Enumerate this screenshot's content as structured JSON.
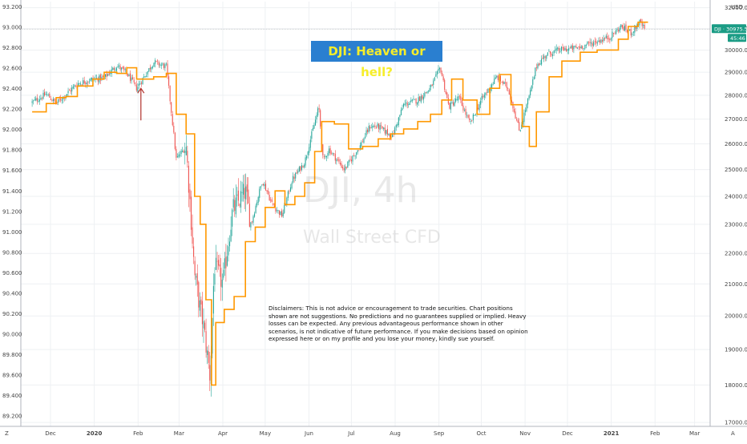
{
  "annotations": {
    "title": "DJI: Heaven or hell?",
    "disclaimer": "Disclaimers: This is not advice or encouragement to trade securities. Chart positions shown are not suggestions. No predictions and no guarantees supplied or implied. Heavy losses can be expected. Any previous advantageous performance shown in other scenarios, is not indicative of future performance.  If you make decisions based on opinion expressed here or on my profile and you lose your money, kindly sue yourself.",
    "watermark_symbol": "DJI, 4h",
    "watermark_description": "Wall Street CFD",
    "currency": "USD",
    "current_price_label": "DJI · 30975.5",
    "countdown_label": "45:46",
    "corner_left": "Z",
    "corner_right": "A"
  },
  "colors": {
    "up_candle": "#26a69a",
    "down_candle": "#ef5350",
    "overlay_line": "#ff9800",
    "price_label_bg": "#1b9c85",
    "arrow": "#b0312b",
    "title_bg": "#2a7fd0",
    "title_text": "#f6ee2a"
  },
  "chart_data": {
    "type": "candlestick",
    "symbol": "DJI",
    "timeframe": "4h",
    "x_ticks": [
      "Dec",
      "2020",
      "Feb",
      "Mar",
      "Apr",
      "May",
      "Jun",
      "Jul",
      "Aug",
      "Sep",
      "Oct",
      "Nov",
      "Dec",
      "2021",
      "Feb",
      "Mar"
    ],
    "x_tick_bold": [
      "2020",
      "2021"
    ],
    "left_axis": {
      "ticks": [
        "93.200",
        "93.000",
        "92.800",
        "92.600",
        "92.400",
        "92.200",
        "92.000",
        "91.800",
        "91.600",
        "91.400",
        "91.200",
        "91.000",
        "90.800",
        "90.600",
        "90.400",
        "90.200",
        "90.000",
        "89.800",
        "89.600",
        "89.400",
        "89.200"
      ],
      "range": [
        89.1,
        93.25
      ]
    },
    "right_axis": {
      "ticks": [
        "32000.0",
        "31000.0",
        "30000.0",
        "29000.0",
        "28000.0",
        "27000.0",
        "26000.0",
        "25000.0",
        "24000.0",
        "23000.0",
        "22000.0",
        "21000.0",
        "20000.0",
        "19000.0",
        "18000.0",
        "17000.0"
      ],
      "range": [
        16900,
        32300
      ],
      "scale": "log"
    },
    "price_path": {
      "dates": [
        "2019-11-18",
        "2019-11-28",
        "2019-12-05",
        "2019-12-12",
        "2019-12-20",
        "2019-12-31",
        "2020-01-08",
        "2020-01-17",
        "2020-01-24",
        "2020-01-31",
        "2020-02-12",
        "2020-02-21",
        "2020-02-28",
        "2020-03-06",
        "2020-03-12",
        "2020-03-16",
        "2020-03-18",
        "2020-03-23",
        "2020-03-26",
        "2020-04-01",
        "2020-04-08",
        "2020-04-17",
        "2020-04-21",
        "2020-04-29",
        "2020-05-06",
        "2020-05-13",
        "2020-05-20",
        "2020-05-29",
        "2020-06-08",
        "2020-06-11",
        "2020-06-15",
        "2020-06-26",
        "2020-07-07",
        "2020-07-14",
        "2020-07-20",
        "2020-07-30",
        "2020-08-07",
        "2020-08-17",
        "2020-08-26",
        "2020-09-02",
        "2020-09-08",
        "2020-09-15",
        "2020-09-23",
        "2020-10-01",
        "2020-10-12",
        "2020-10-20",
        "2020-10-28",
        "2020-11-05",
        "2020-11-09",
        "2020-11-16",
        "2020-11-25",
        "2020-12-08",
        "2020-12-17",
        "2020-12-31",
        "2021-01-08",
        "2021-01-15",
        "2021-01-21",
        "2021-01-25"
      ],
      "values": [
        27700,
        28050,
        27650,
        28050,
        28500,
        28700,
        28750,
        29300,
        28950,
        28300,
        29450,
        29250,
        25400,
        25900,
        21300,
        20200,
        19800,
        18200,
        21600,
        21000,
        23500,
        24200,
        23000,
        24600,
        23700,
        23300,
        24600,
        25300,
        27500,
        25300,
        25800,
        25000,
        25900,
        26700,
        26700,
        26300,
        27600,
        27800,
        28300,
        29200,
        27500,
        27900,
        26800,
        27800,
        28800,
        28300,
        26500,
        28200,
        29300,
        29800,
        30000,
        30100,
        30300,
        30600,
        31100,
        30800,
        31300,
        30950
      ]
    },
    "overlay_line": {
      "name": "",
      "dates": [
        "2019-11-18",
        "2019-11-28",
        "2019-12-05",
        "2019-12-12",
        "2019-12-20",
        "2019-12-31",
        "2020-01-08",
        "2020-01-17",
        "2020-01-24",
        "2020-01-31",
        "2020-02-12",
        "2020-02-21",
        "2020-02-28",
        "2020-03-06",
        "2020-03-12",
        "2020-03-16",
        "2020-03-20",
        "2020-03-24",
        "2020-03-27",
        "2020-04-02",
        "2020-04-09",
        "2020-04-17",
        "2020-04-24",
        "2020-05-01",
        "2020-05-08",
        "2020-05-15",
        "2020-05-22",
        "2020-05-29",
        "2020-06-05",
        "2020-06-10",
        "2020-06-19",
        "2020-06-29",
        "2020-07-09",
        "2020-07-20",
        "2020-07-29",
        "2020-08-07",
        "2020-08-17",
        "2020-08-26",
        "2020-09-03",
        "2020-09-10",
        "2020-09-18",
        "2020-09-28",
        "2020-10-07",
        "2020-10-14",
        "2020-10-22",
        "2020-10-30",
        "2020-11-04",
        "2020-11-09",
        "2020-11-18",
        "2020-11-27",
        "2020-12-10",
        "2020-12-22",
        "2021-01-06",
        "2021-01-13",
        "2021-01-20",
        "2021-01-27"
      ],
      "values": [
        27300,
        27650,
        27900,
        27950,
        28400,
        28700,
        29000,
        28950,
        29200,
        28700,
        28800,
        28950,
        27200,
        26400,
        24000,
        23000,
        20500,
        18000,
        19800,
        20200,
        20600,
        22400,
        22900,
        23600,
        24200,
        23700,
        24000,
        24500,
        25700,
        26900,
        26800,
        25800,
        25900,
        26200,
        26400,
        26600,
        26900,
        27200,
        27800,
        28700,
        27800,
        27200,
        28300,
        28900,
        27600,
        26700,
        25900,
        27300,
        28800,
        29500,
        29900,
        30000,
        30500,
        31100,
        31300,
        31300
      ]
    },
    "markers": [
      {
        "type": "arrow-up",
        "date": "2020-02-03",
        "value": 28300
      }
    ]
  }
}
